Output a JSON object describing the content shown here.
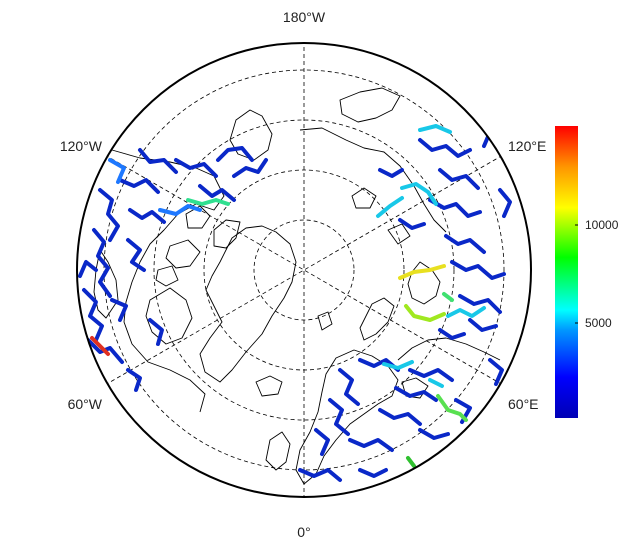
{
  "map": {
    "projection": "north-polar-stereographic",
    "longitude_labels": {
      "top": "180°W",
      "bottom": "0°",
      "upper_left": "120°W",
      "upper_right": "120°E",
      "lower_left": "60°W",
      "lower_right": "60°E"
    },
    "graticule": "dashed",
    "river_network_colormap": "jet",
    "colors": {
      "coastline": "#000000",
      "graticule": "#000000",
      "frame": "#000000",
      "low_value": "#0000c8",
      "high_value": "#ff0000"
    }
  },
  "colorbar": {
    "ticks": [
      "10000",
      "5000"
    ],
    "tick_values": [
      10000,
      5000
    ],
    "min": 0,
    "max": 14700,
    "orientation": "vertical"
  }
}
